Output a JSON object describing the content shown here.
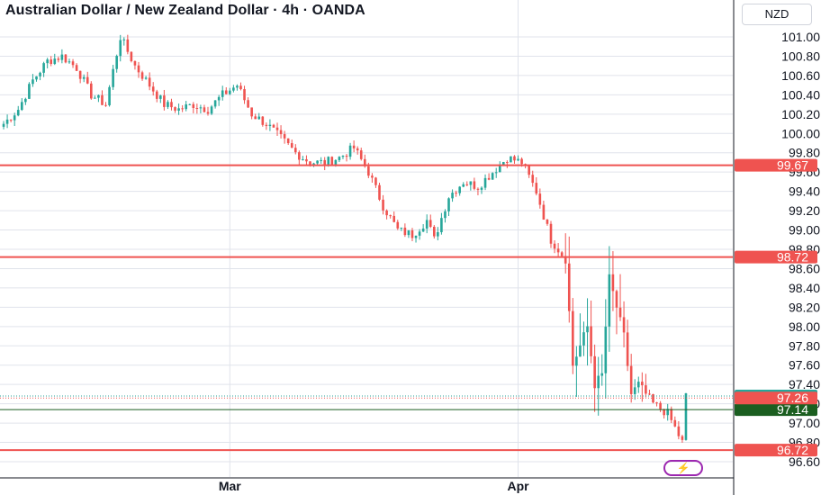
{
  "header": {
    "title": "Australian Dollar / New Zealand Dollar · 4h · OANDA",
    "currency": "NZD"
  },
  "colors": {
    "up": "#26a69a",
    "down": "#ef5350",
    "level_line": "#ef5350",
    "mid_line": "#1b5e20",
    "grid": "#e0e3eb"
  },
  "chart_data": {
    "type": "candlestick",
    "title": "Australian Dollar / New Zealand Dollar · 4h · OANDA",
    "ylim": [
      96.45,
      101.25
    ],
    "y_ticks": [
      "101.00",
      "100.80",
      "100.60",
      "100.40",
      "100.20",
      "100.00",
      "99.80",
      "99.60",
      "99.40",
      "99.20",
      "99.00",
      "98.80",
      "98.60",
      "98.40",
      "98.20",
      "98.00",
      "97.80",
      "97.60",
      "97.40",
      "97.20",
      "97.00",
      "96.80",
      "96.60"
    ],
    "x_ticks": [
      {
        "label": "Mar",
        "index": 62
      },
      {
        "label": "Apr",
        "index": 141
      }
    ],
    "n_bars": 188,
    "horizontal_levels": [
      {
        "value": 99.67,
        "label": "99.67",
        "color": "#ef5350"
      },
      {
        "value": 98.72,
        "label": "98.72",
        "color": "#ef5350"
      },
      {
        "value": 96.72,
        "label": "96.72",
        "color": "#ef5350"
      },
      {
        "value": 97.14,
        "label": "97.14",
        "color": "#1b5e20"
      }
    ],
    "price_labels": [
      {
        "value": 97.28,
        "label": "97.28",
        "color": "#26a69a"
      },
      {
        "value": 97.26,
        "label": "97.26",
        "color": "#ef5350"
      }
    ],
    "close_path": [
      [
        0,
        100.1
      ],
      [
        4,
        100.25
      ],
      [
        8,
        100.55
      ],
      [
        12,
        100.75
      ],
      [
        16,
        100.8
      ],
      [
        20,
        100.68
      ],
      [
        24,
        100.4
      ],
      [
        28,
        100.3
      ],
      [
        32,
        101.0
      ],
      [
        36,
        100.7
      ],
      [
        40,
        100.5
      ],
      [
        44,
        100.3
      ],
      [
        48,
        100.25
      ],
      [
        52,
        100.3
      ],
      [
        56,
        100.25
      ],
      [
        60,
        100.4
      ],
      [
        64,
        100.5
      ],
      [
        68,
        100.2
      ],
      [
        72,
        100.1
      ],
      [
        76,
        99.95
      ],
      [
        80,
        99.8
      ],
      [
        84,
        99.7
      ],
      [
        88,
        99.7
      ],
      [
        92,
        99.75
      ],
      [
        96,
        99.85
      ],
      [
        100,
        99.6
      ],
      [
        104,
        99.25
      ],
      [
        108,
        99.0
      ],
      [
        112,
        98.95
      ],
      [
        116,
        99.1
      ],
      [
        118,
        98.9
      ],
      [
        122,
        99.35
      ],
      [
        126,
        99.5
      ],
      [
        130,
        99.45
      ],
      [
        134,
        99.6
      ],
      [
        138,
        99.75
      ],
      [
        142,
        99.7
      ],
      [
        146,
        99.4
      ],
      [
        150,
        98.9
      ],
      [
        154,
        98.7
      ],
      [
        156,
        97.6
      ],
      [
        160,
        98.0
      ],
      [
        162,
        97.4
      ],
      [
        164,
        97.5
      ],
      [
        166,
        98.5
      ],
      [
        170,
        97.9
      ],
      [
        172,
        97.3
      ],
      [
        174,
        97.4
      ],
      [
        178,
        97.2
      ],
      [
        182,
        97.1
      ],
      [
        186,
        96.8
      ],
      [
        187,
        97.28
      ]
    ]
  }
}
